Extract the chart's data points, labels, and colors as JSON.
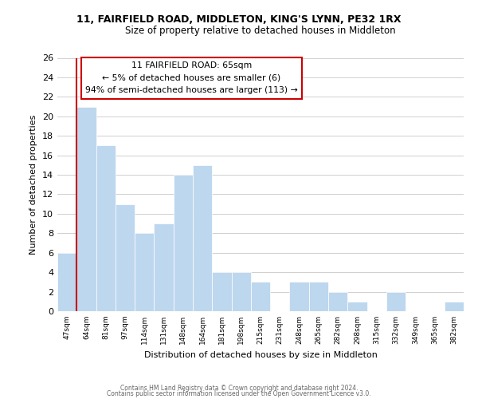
{
  "title": "11, FAIRFIELD ROAD, MIDDLETON, KING'S LYNN, PE32 1RX",
  "subtitle": "Size of property relative to detached houses in Middleton",
  "xlabel": "Distribution of detached houses by size in Middleton",
  "ylabel": "Number of detached properties",
  "bins": [
    "47sqm",
    "64sqm",
    "81sqm",
    "97sqm",
    "114sqm",
    "131sqm",
    "148sqm",
    "164sqm",
    "181sqm",
    "198sqm",
    "215sqm",
    "231sqm",
    "248sqm",
    "265sqm",
    "282sqm",
    "298sqm",
    "315sqm",
    "332sqm",
    "349sqm",
    "365sqm",
    "382sqm"
  ],
  "values": [
    6,
    21,
    17,
    11,
    8,
    9,
    14,
    15,
    4,
    4,
    3,
    0,
    3,
    3,
    2,
    1,
    0,
    2,
    0,
    0,
    1
  ],
  "bar_color": "#bdd7ee",
  "bar_edge_color": "#bdd7ee",
  "property_line_color": "#cc0000",
  "ylim": [
    0,
    26
  ],
  "yticks": [
    0,
    2,
    4,
    6,
    8,
    10,
    12,
    14,
    16,
    18,
    20,
    22,
    24,
    26
  ],
  "annotation_title": "11 FAIRFIELD ROAD: 65sqm",
  "annotation_line1": "← 5% of detached houses are smaller (6)",
  "annotation_line2": "94% of semi-detached houses are larger (113) →",
  "annotation_box_color": "#ffffff",
  "annotation_box_edge": "#cc0000",
  "footer1": "Contains HM Land Registry data © Crown copyright and database right 2024.",
  "footer2": "Contains public sector information licensed under the Open Government Licence v3.0.",
  "background_color": "#ffffff",
  "grid_color": "#d0d0d0"
}
